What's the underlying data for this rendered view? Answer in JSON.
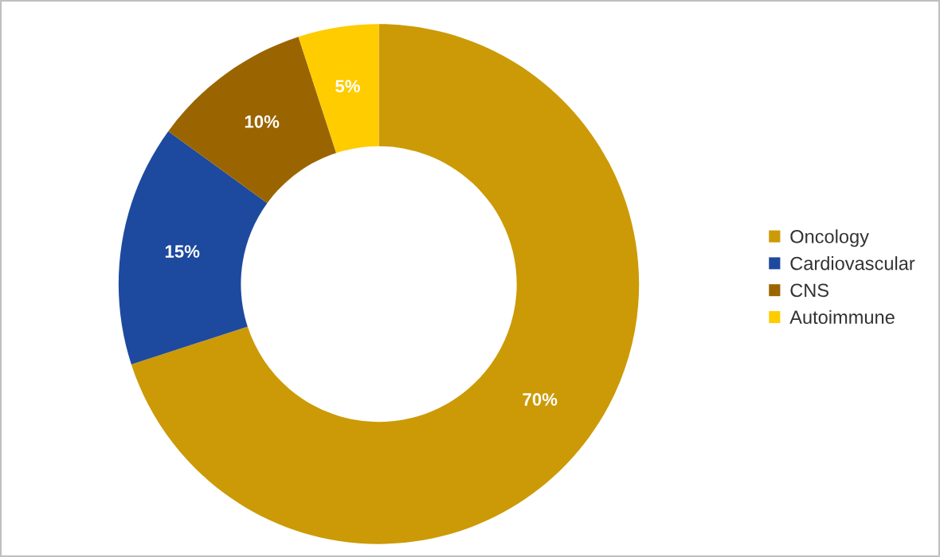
{
  "chart_data": {
    "type": "donut",
    "categories": [
      "Oncology",
      "Cardiovascular",
      "CNS",
      "Autoimmune"
    ],
    "values": [
      70,
      15,
      10,
      5
    ],
    "value_labels": [
      "70%",
      "15%",
      "10%",
      "5%"
    ],
    "colors": [
      "#cc9a06",
      "#1d4a9e",
      "#9a6500",
      "#ffcc00"
    ],
    "legend": "right"
  }
}
